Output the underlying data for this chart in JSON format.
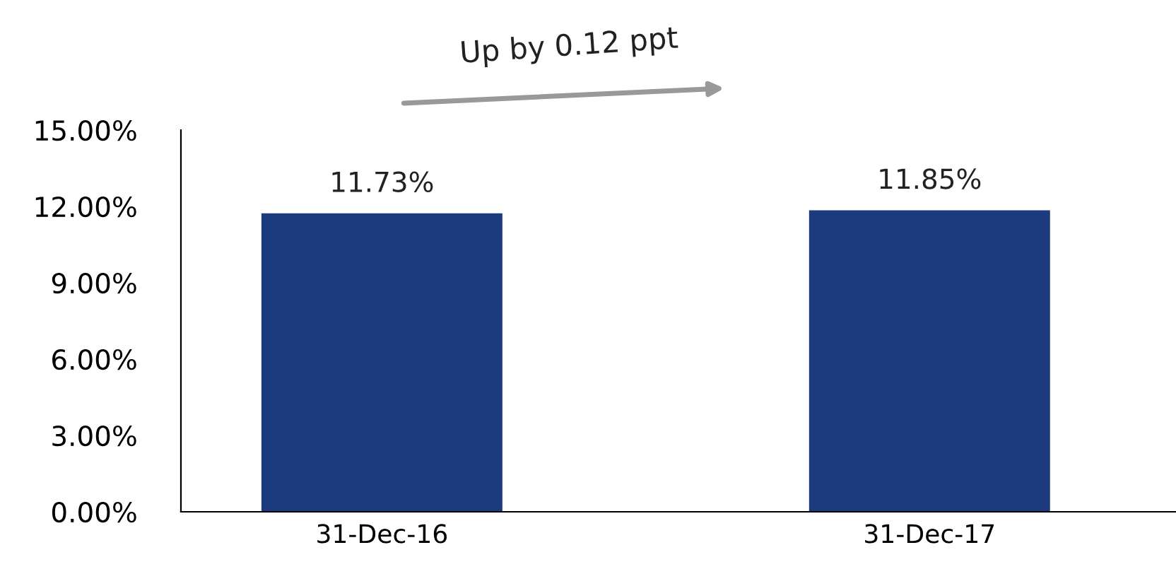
{
  "chart_data": {
    "type": "bar",
    "categories": [
      "31-Dec-16",
      "31-Dec-17"
    ],
    "values": [
      11.73,
      11.85
    ],
    "color": "#1c3a7e",
    "value_labels": [
      "11.73%",
      "11.85%"
    ],
    "ylim": [
      0,
      15
    ],
    "yticks": [
      {
        "value": 0,
        "label": "0.00%"
      },
      {
        "value": 3,
        "label": "3.00%"
      },
      {
        "value": 6,
        "label": "6.00%"
      },
      {
        "value": 9,
        "label": "9.00%"
      },
      {
        "value": 12,
        "label": "12.00%"
      },
      {
        "value": 15,
        "label": "15.00%"
      }
    ],
    "grid": false,
    "legend": false,
    "annotations": [
      "Up by 0.12 ppt"
    ]
  }
}
